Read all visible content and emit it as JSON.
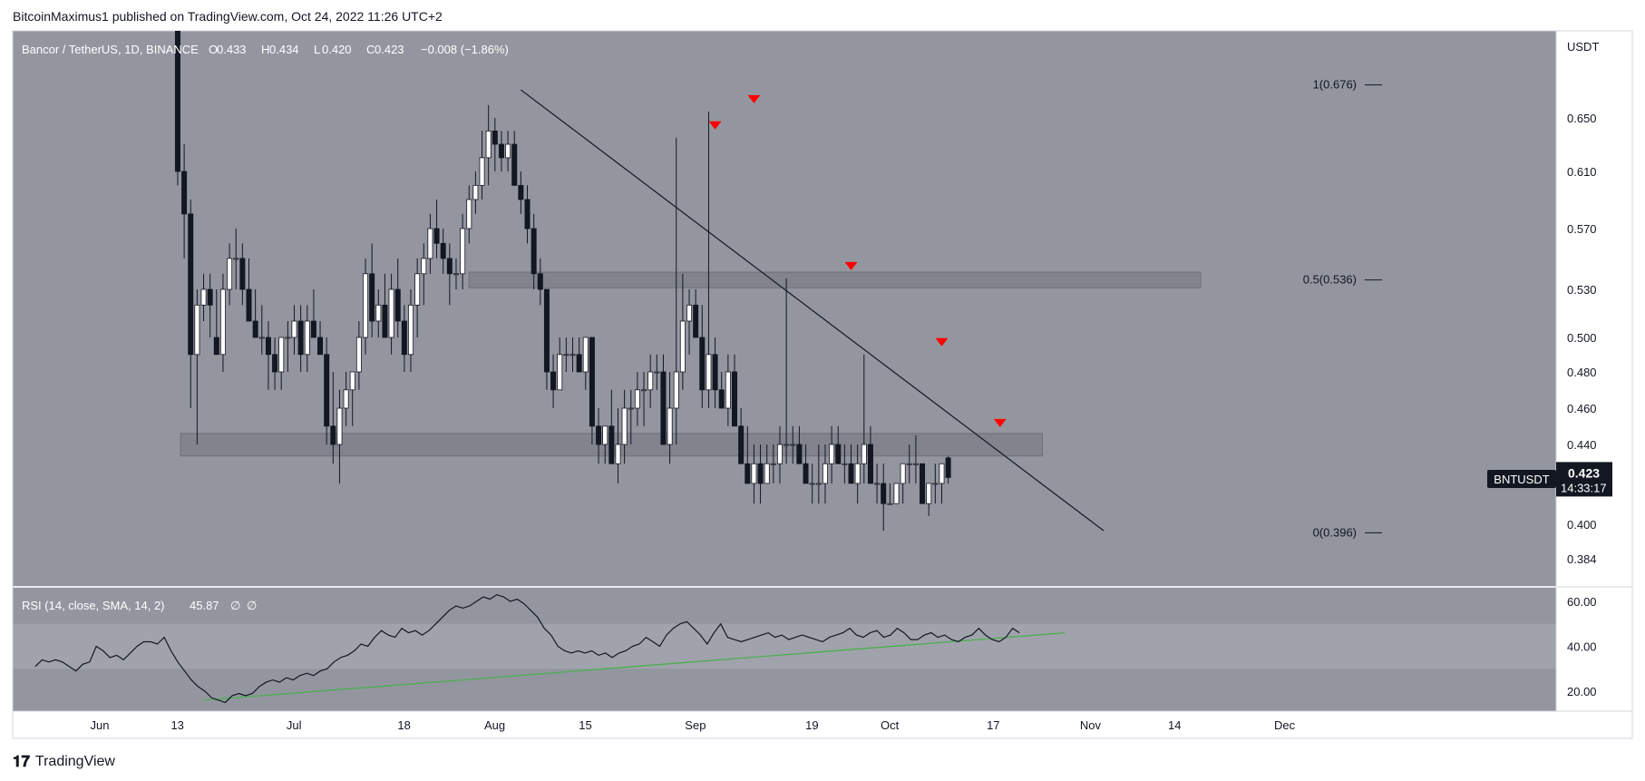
{
  "header": {
    "published_by": "BitcoinMaximus1 published on TradingView.com, Oct 24, 2022 11:26 UTC+2"
  },
  "symbol": {
    "title": "Bancor / TetherUS, 1D, BINANCE",
    "ohlc": [
      {
        "k": "O",
        "v": "0.433"
      },
      {
        "k": "H",
        "v": "0.434"
      },
      {
        "k": "L",
        "v": "0.420"
      },
      {
        "k": "C",
        "v": "0.423"
      }
    ],
    "change": "−0.008 (−1.86%)",
    "ticker": "BNTUSDT",
    "last_price": "0.423",
    "countdown": "14:33:17",
    "currency": "USDT"
  },
  "fib_labels": [
    {
      "text": "1(0.676)",
      "price": 0.676
    },
    {
      "text": "0.5(0.536)",
      "price": 0.536
    },
    {
      "text": "0(0.396)",
      "price": 0.396
    }
  ],
  "rsi_label": {
    "title": "RSI (14, close, SMA, 14, 2)",
    "value": "45.87",
    "na1": "∅",
    "na2": "∅"
  },
  "footer": {
    "brand": "TradingView"
  },
  "colors": {
    "background": "#93969f",
    "bull": "#ffffff",
    "bear": "#131722",
    "marker": "#ff0000",
    "rsi_trend": "#4caf50"
  },
  "chart_data": [
    {
      "type": "candlestick",
      "title": "Bancor / TetherUS, 1D, BINANCE",
      "ylabel": "USDT",
      "y_ticks": [
        "0.650",
        "0.610",
        "0.570",
        "0.530",
        "0.500",
        "0.480",
        "0.460",
        "0.440",
        "0.400",
        "0.384"
      ],
      "x_ticks": [
        "Jun",
        "13",
        "Jul",
        "18",
        "Aug",
        "15",
        "Sep",
        "19",
        "Oct",
        "17",
        "Nov",
        "14",
        "Dec"
      ],
      "start_date": "2022-06-15",
      "candles": [
        [
          0.76,
          0.8,
          0.6,
          0.61
        ],
        [
          0.61,
          0.63,
          0.55,
          0.58
        ],
        [
          0.58,
          0.59,
          0.46,
          0.49
        ],
        [
          0.49,
          0.53,
          0.44,
          0.52
        ],
        [
          0.52,
          0.54,
          0.51,
          0.53
        ],
        [
          0.53,
          0.54,
          0.5,
          0.52
        ],
        [
          0.5,
          0.53,
          0.49,
          0.49
        ],
        [
          0.49,
          0.54,
          0.48,
          0.53
        ],
        [
          0.53,
          0.56,
          0.52,
          0.55
        ],
        [
          0.55,
          0.57,
          0.53,
          0.55
        ],
        [
          0.55,
          0.56,
          0.52,
          0.53
        ],
        [
          0.53,
          0.55,
          0.51,
          0.51
        ],
        [
          0.51,
          0.53,
          0.5,
          0.5
        ],
        [
          0.5,
          0.52,
          0.49,
          0.5
        ],
        [
          0.5,
          0.51,
          0.47,
          0.49
        ],
        [
          0.49,
          0.5,
          0.47,
          0.48
        ],
        [
          0.48,
          0.5,
          0.47,
          0.5
        ],
        [
          0.5,
          0.51,
          0.48,
          0.5
        ],
        [
          0.5,
          0.52,
          0.49,
          0.51
        ],
        [
          0.51,
          0.52,
          0.48,
          0.49
        ],
        [
          0.49,
          0.52,
          0.48,
          0.51
        ],
        [
          0.51,
          0.53,
          0.5,
          0.5
        ],
        [
          0.5,
          0.51,
          0.49,
          0.49
        ],
        [
          0.49,
          0.5,
          0.44,
          0.45
        ],
        [
          0.45,
          0.48,
          0.43,
          0.44
        ],
        [
          0.44,
          0.47,
          0.42,
          0.46
        ],
        [
          0.46,
          0.48,
          0.45,
          0.47
        ],
        [
          0.47,
          0.48,
          0.45,
          0.48
        ],
        [
          0.48,
          0.51,
          0.47,
          0.5
        ],
        [
          0.5,
          0.55,
          0.49,
          0.54
        ],
        [
          0.54,
          0.56,
          0.5,
          0.51
        ],
        [
          0.51,
          0.53,
          0.5,
          0.52
        ],
        [
          0.52,
          0.54,
          0.5,
          0.5
        ],
        [
          0.5,
          0.54,
          0.49,
          0.53
        ],
        [
          0.53,
          0.55,
          0.5,
          0.51
        ],
        [
          0.51,
          0.52,
          0.48,
          0.49
        ],
        [
          0.49,
          0.53,
          0.48,
          0.52
        ],
        [
          0.52,
          0.55,
          0.5,
          0.54
        ],
        [
          0.54,
          0.56,
          0.52,
          0.55
        ],
        [
          0.55,
          0.58,
          0.54,
          0.57
        ],
        [
          0.57,
          0.59,
          0.55,
          0.56
        ],
        [
          0.56,
          0.57,
          0.54,
          0.55
        ],
        [
          0.55,
          0.56,
          0.52,
          0.54
        ],
        [
          0.54,
          0.55,
          0.53,
          0.54
        ],
        [
          0.54,
          0.58,
          0.53,
          0.57
        ],
        [
          0.57,
          0.6,
          0.56,
          0.59
        ],
        [
          0.59,
          0.61,
          0.58,
          0.6
        ],
        [
          0.6,
          0.64,
          0.59,
          0.62
        ],
        [
          0.62,
          0.66,
          0.6,
          0.64
        ],
        [
          0.64,
          0.65,
          0.61,
          0.63
        ],
        [
          0.63,
          0.64,
          0.61,
          0.62
        ],
        [
          0.62,
          0.64,
          0.61,
          0.63
        ],
        [
          0.63,
          0.64,
          0.6,
          0.6
        ],
        [
          0.6,
          0.61,
          0.58,
          0.59
        ],
        [
          0.59,
          0.6,
          0.56,
          0.57
        ],
        [
          0.57,
          0.58,
          0.53,
          0.54
        ],
        [
          0.54,
          0.55,
          0.52,
          0.53
        ],
        [
          0.53,
          0.53,
          0.47,
          0.48
        ],
        [
          0.48,
          0.49,
          0.46,
          0.47
        ],
        [
          0.47,
          0.5,
          0.47,
          0.49
        ],
        [
          0.49,
          0.5,
          0.48,
          0.49
        ],
        [
          0.49,
          0.5,
          0.48,
          0.49
        ],
        [
          0.49,
          0.5,
          0.48,
          0.48
        ],
        [
          0.48,
          0.5,
          0.47,
          0.5
        ],
        [
          0.5,
          0.5,
          0.44,
          0.45
        ],
        [
          0.45,
          0.46,
          0.43,
          0.44
        ],
        [
          0.44,
          0.45,
          0.43,
          0.45
        ],
        [
          0.45,
          0.47,
          0.43,
          0.43
        ],
        [
          0.43,
          0.46,
          0.42,
          0.44
        ],
        [
          0.44,
          0.47,
          0.43,
          0.46
        ],
        [
          0.46,
          0.47,
          0.44,
          0.46
        ],
        [
          0.46,
          0.48,
          0.45,
          0.47
        ],
        [
          0.47,
          0.48,
          0.45,
          0.47
        ],
        [
          0.47,
          0.49,
          0.46,
          0.48
        ],
        [
          0.48,
          0.49,
          0.47,
          0.48
        ],
        [
          0.48,
          0.49,
          0.44,
          0.44
        ],
        [
          0.44,
          0.48,
          0.43,
          0.46
        ],
        [
          0.46,
          0.635,
          0.44,
          0.48
        ],
        [
          0.48,
          0.54,
          0.47,
          0.51
        ],
        [
          0.51,
          0.53,
          0.49,
          0.52
        ],
        [
          0.52,
          0.53,
          0.5,
          0.5
        ],
        [
          0.5,
          0.52,
          0.46,
          0.47
        ],
        [
          0.47,
          0.655,
          0.46,
          0.49
        ],
        [
          0.49,
          0.5,
          0.46,
          0.47
        ],
        [
          0.47,
          0.48,
          0.46,
          0.46
        ],
        [
          0.46,
          0.49,
          0.45,
          0.48
        ],
        [
          0.48,
          0.49,
          0.45,
          0.45
        ],
        [
          0.45,
          0.46,
          0.43,
          0.43
        ],
        [
          0.43,
          0.45,
          0.42,
          0.42
        ],
        [
          0.42,
          0.44,
          0.41,
          0.43
        ],
        [
          0.43,
          0.44,
          0.41,
          0.42
        ],
        [
          0.42,
          0.44,
          0.42,
          0.43
        ],
        [
          0.43,
          0.44,
          0.42,
          0.43
        ],
        [
          0.43,
          0.45,
          0.42,
          0.44
        ],
        [
          0.44,
          0.537,
          0.43,
          0.44
        ],
        [
          0.44,
          0.45,
          0.43,
          0.44
        ],
        [
          0.44,
          0.45,
          0.43,
          0.43
        ],
        [
          0.43,
          0.44,
          0.42,
          0.42
        ],
        [
          0.42,
          0.43,
          0.41,
          0.42
        ],
        [
          0.42,
          0.44,
          0.41,
          0.42
        ],
        [
          0.42,
          0.44,
          0.41,
          0.43
        ],
        [
          0.43,
          0.45,
          0.42,
          0.44
        ],
        [
          0.44,
          0.45,
          0.43,
          0.43
        ],
        [
          0.43,
          0.44,
          0.42,
          0.43
        ],
        [
          0.43,
          0.44,
          0.42,
          0.42
        ],
        [
          0.42,
          0.44,
          0.41,
          0.43
        ],
        [
          0.43,
          0.49,
          0.42,
          0.44
        ],
        [
          0.44,
          0.45,
          0.42,
          0.42
        ],
        [
          0.42,
          0.43,
          0.41,
          0.42
        ],
        [
          0.42,
          0.43,
          0.397,
          0.41
        ],
        [
          0.41,
          0.42,
          0.41,
          0.41
        ],
        [
          0.41,
          0.42,
          0.41,
          0.42
        ],
        [
          0.42,
          0.43,
          0.41,
          0.43
        ],
        [
          0.43,
          0.44,
          0.42,
          0.43
        ],
        [
          0.43,
          0.445,
          0.42,
          0.43
        ],
        [
          0.43,
          0.43,
          0.41,
          0.41
        ],
        [
          0.41,
          0.42,
          0.404,
          0.42
        ],
        [
          0.42,
          0.43,
          0.41,
          0.42
        ],
        [
          0.42,
          0.43,
          0.41,
          0.43
        ],
        [
          0.433,
          0.434,
          0.42,
          0.423
        ]
      ],
      "support_zone": [
        0.434,
        0.446
      ],
      "resistance_zone": [
        0.531,
        0.541
      ],
      "trendline": [
        [
          "2022-08-07",
          0.672
        ],
        [
          "2022-11-05",
          0.397
        ]
      ],
      "fib_levels": [
        {
          "level": "1",
          "price": 0.676
        },
        {
          "level": "0.5",
          "price": 0.536
        },
        {
          "level": "0",
          "price": 0.396
        }
      ],
      "rejection_markers": [
        {
          "date": "2022-09-06",
          "price": 0.635
        },
        {
          "date": "2022-09-12",
          "price": 0.655
        },
        {
          "date": "2022-09-27",
          "price": 0.537
        },
        {
          "date": "2022-10-11",
          "price": 0.49
        },
        {
          "date": "2022-10-20",
          "price": 0.445
        }
      ],
      "current_price": 0.423
    },
    {
      "type": "line",
      "title": "RSI (14, close, SMA, 14, 2)",
      "y_ticks": [
        "60.00",
        "40.00",
        "20.00"
      ],
      "band": [
        30,
        50
      ],
      "x_range": [
        "2022-05-24",
        "2022-10-23"
      ],
      "values": [
        31,
        34,
        33,
        34,
        33,
        31,
        29,
        32,
        33,
        40,
        38,
        35,
        36,
        34,
        37,
        40,
        42,
        42,
        41,
        44,
        38,
        33,
        29,
        25,
        22,
        20,
        17,
        16,
        15,
        18,
        19,
        18,
        19,
        22,
        24,
        25,
        24,
        26,
        25,
        27,
        28,
        27,
        29,
        30,
        33,
        35,
        36,
        38,
        41,
        40,
        44,
        47,
        45,
        44,
        48,
        46,
        47,
        45,
        47,
        50,
        53,
        56,
        58,
        57,
        58,
        60,
        62,
        61,
        63,
        62,
        60,
        61,
        59,
        56,
        53,
        48,
        45,
        40,
        38,
        37,
        38,
        37,
        38,
        36,
        37,
        35,
        37,
        38,
        40,
        41,
        44,
        42,
        40,
        45,
        48,
        50,
        51,
        48,
        45,
        41,
        46,
        50,
        44,
        43,
        42,
        43,
        44,
        45,
        46,
        44,
        45,
        43,
        44,
        45,
        44,
        43,
        42,
        44,
        45,
        46,
        48,
        45,
        44,
        46,
        47,
        44,
        45,
        48,
        46,
        43,
        43,
        45,
        46,
        44,
        45,
        43,
        42,
        44,
        45,
        48,
        45,
        43,
        42,
        44,
        48,
        46
      ],
      "trendline": [
        [
          "2022-06-19",
          16
        ],
        [
          "2022-10-30",
          46
        ]
      ]
    }
  ]
}
